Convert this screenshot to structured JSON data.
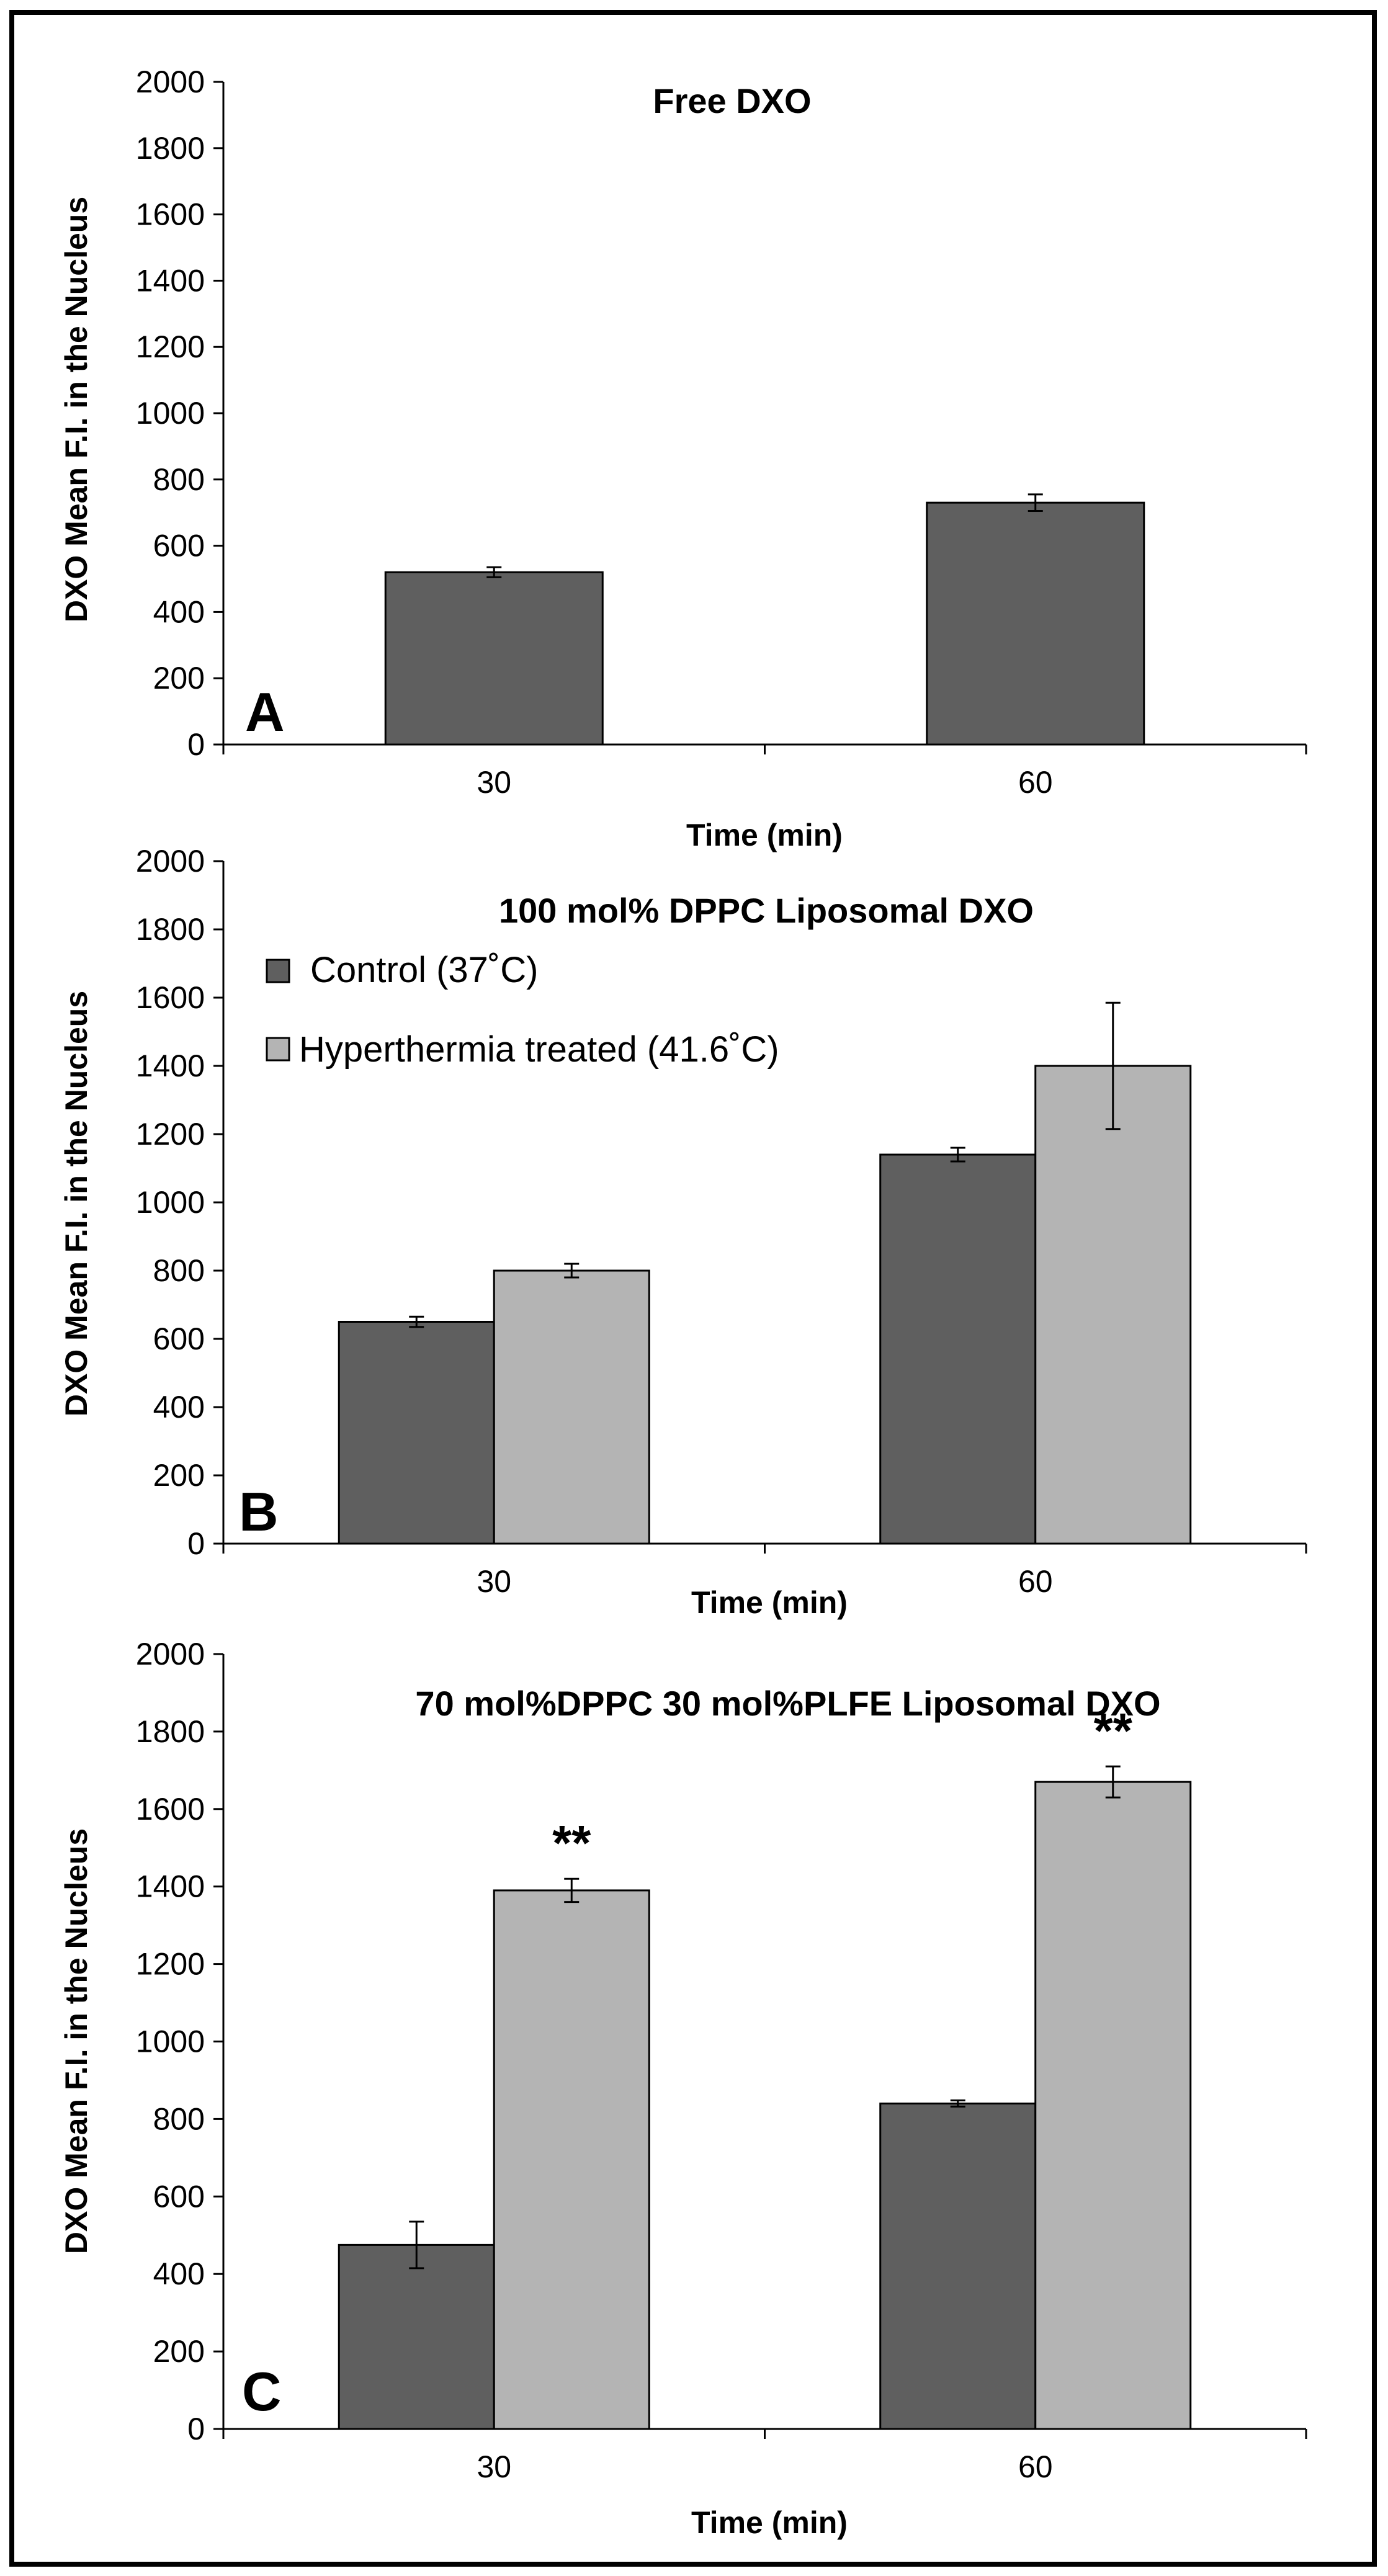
{
  "chart_data": [
    {
      "type": "bar",
      "panel": "A",
      "title": "Free DXO",
      "xlabel": "Time (min)",
      "ylabel": "DXO Mean F.I. in the Nucleus",
      "ylim": [
        0,
        2000
      ],
      "yticks": [
        "0",
        "200",
        "400",
        "600",
        "800",
        "1000",
        "1200",
        "1400",
        "1600",
        "1800",
        "2000"
      ],
      "categories": [
        "30",
        "60"
      ],
      "series": [
        {
          "name": "Free DXO",
          "color": "#5f5f5f",
          "values": [
            520,
            730
          ],
          "errors": [
            15,
            25
          ],
          "sig": [
            "",
            ""
          ]
        }
      ]
    },
    {
      "type": "bar",
      "panel": "B",
      "title": "100 mol% DPPC Liposomal DXO",
      "xlabel": "Time (min)",
      "ylabel": "DXO Mean F.I. in the Nucleus",
      "ylim": [
        0,
        2000
      ],
      "yticks": [
        "0",
        "200",
        "400",
        "600",
        "800",
        "1000",
        "1200",
        "1400",
        "1600",
        "1800",
        "2000"
      ],
      "categories": [
        "30",
        "60"
      ],
      "legend": [
        "Control (37˚C)",
        "Hyperthermia treated (41.6˚C)"
      ],
      "series": [
        {
          "name": "Control (37˚C)",
          "color": "#5f5f5f",
          "values": [
            650,
            1140
          ],
          "errors": [
            15,
            20
          ],
          "sig": [
            "",
            ""
          ]
        },
        {
          "name": "Hyperthermia treated (41.6˚C)",
          "color": "#b4b4b4",
          "values": [
            800,
            1400
          ],
          "errors": [
            20,
            185
          ],
          "sig": [
            "",
            ""
          ]
        }
      ]
    },
    {
      "type": "bar",
      "panel": "C",
      "title": "70 mol%DPPC 30 mol%PLFE Liposomal DXO",
      "xlabel": "Time (min)",
      "ylabel": "DXO Mean F.I. in the Nucleus",
      "ylim": [
        0,
        2000
      ],
      "yticks": [
        "0",
        "200",
        "400",
        "600",
        "800",
        "1000",
        "1200",
        "1400",
        "1600",
        "1800",
        "2000"
      ],
      "categories": [
        "30",
        "60"
      ],
      "series": [
        {
          "name": "Control (37˚C)",
          "color": "#5f5f5f",
          "values": [
            475,
            840
          ],
          "errors": [
            60,
            8
          ],
          "sig": [
            "",
            ""
          ]
        },
        {
          "name": "Hyperthermia treated (41.6˚C)",
          "color": "#b4b4b4",
          "values": [
            1390,
            1670
          ],
          "errors": [
            30,
            40
          ],
          "sig": [
            "**",
            "**"
          ]
        }
      ]
    }
  ]
}
